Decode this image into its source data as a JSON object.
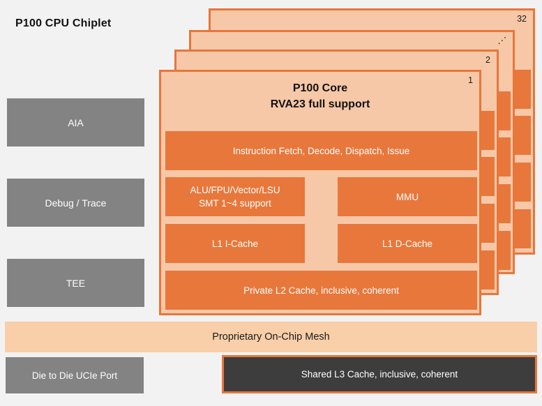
{
  "title": "P100 CPU Chiplet",
  "colors": {
    "background": "#f2f2f2",
    "card_bg": "#f6c8a8",
    "orange_accent": "#e8763a",
    "orange_block": "#e8773b",
    "gray_block": "#838383",
    "dark_block": "#3d3d3d",
    "mesh_bg": "#f8cfa9",
    "block_text": "#ffffff",
    "title_text": "#111111"
  },
  "side_blocks": [
    {
      "label": "AIA"
    },
    {
      "label": "Debug / Trace"
    },
    {
      "label": "TEE"
    }
  ],
  "core_stack": {
    "cards": [
      {
        "label": "32"
      },
      {
        "label": "⋰"
      },
      {
        "label": "2"
      },
      {
        "label": "1"
      }
    ],
    "core": {
      "title_line1": "P100 Core",
      "title_line2": "RVA23 full support",
      "fetch": "Instruction Fetch, Decode, Dispatch, Issue",
      "alu_line1": "ALU/FPU/Vector/LSU",
      "alu_line2": "SMT 1~4 support",
      "mmu": "MMU",
      "l1_icache": "L1 I-Cache",
      "l1_dcache": "L1 D-Cache",
      "l2": "Private L2 Cache, inclusive, coherent"
    }
  },
  "mesh": {
    "label": "Proprietary On-Chip Mesh"
  },
  "bottom_row": {
    "ucie_label": "Die to Die UCIe Port",
    "l3_label": "Shared L3 Cache, inclusive, coherent"
  }
}
